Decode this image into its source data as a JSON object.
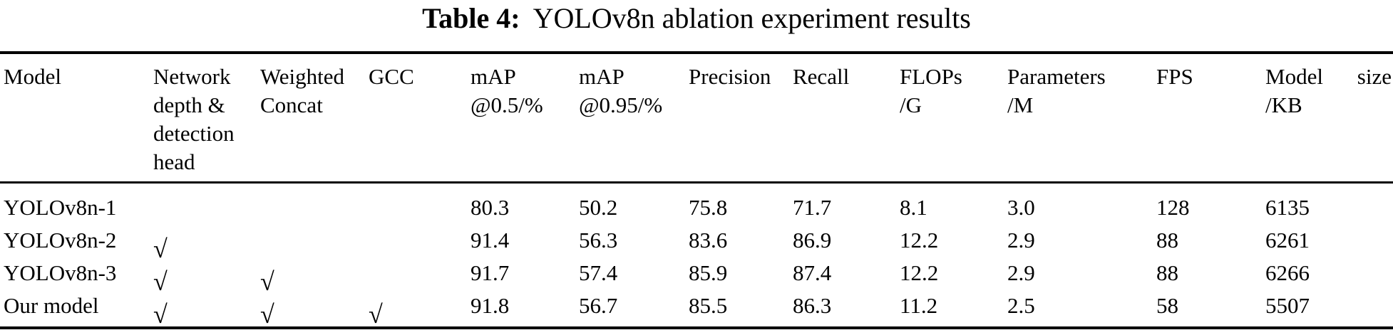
{
  "page": {
    "background": "#ffffff",
    "text_color": "#000000",
    "rule_color": "#000000"
  },
  "title": {
    "prefix": "Table 4:",
    "text": "YOLOv8n ablation experiment results"
  },
  "table": {
    "checkmark": "√",
    "columns": [
      {
        "id": "model",
        "lines": [
          "Model"
        ]
      },
      {
        "id": "network_depth",
        "lines": [
          "Network",
          "depth &",
          "detection",
          "head"
        ]
      },
      {
        "id": "weighted_concat",
        "lines": [
          "Weighted",
          "Concat"
        ]
      },
      {
        "id": "gcc",
        "lines": [
          "GCC"
        ]
      },
      {
        "id": "map50",
        "lines": [
          "mAP",
          "@0.5/%"
        ]
      },
      {
        "id": "map95",
        "lines": [
          "mAP",
          "@0.95/%"
        ]
      },
      {
        "id": "precision",
        "lines": [
          "Precision"
        ]
      },
      {
        "id": "recall",
        "lines": [
          "Recall"
        ]
      },
      {
        "id": "flops",
        "lines": [
          "FLOPs",
          "/G"
        ]
      },
      {
        "id": "parameters",
        "lines": [
          "Parameters",
          "/M"
        ]
      },
      {
        "id": "fps",
        "lines": [
          "FPS"
        ]
      },
      {
        "id": "model_size",
        "lines": [
          "Model size",
          "/KB"
        ],
        "justify_first_line": true
      }
    ],
    "rows": [
      {
        "model": "YOLOv8n-1",
        "network_depth": false,
        "weighted_concat": false,
        "gcc": false,
        "map50": "80.3",
        "map95": "50.2",
        "precision": "75.8",
        "recall": "71.7",
        "flops": "8.1",
        "parameters": "3.0",
        "fps": "128",
        "model_size": "6135"
      },
      {
        "model": "YOLOv8n-2",
        "network_depth": true,
        "weighted_concat": false,
        "gcc": false,
        "map50": "91.4",
        "map95": "56.3",
        "precision": "83.6",
        "recall": "86.9",
        "flops": "12.2",
        "parameters": "2.9",
        "fps": "88",
        "model_size": "6261"
      },
      {
        "model": "YOLOv8n-3",
        "network_depth": true,
        "weighted_concat": true,
        "gcc": false,
        "map50": "91.7",
        "map95": "57.4",
        "precision": "85.9",
        "recall": "87.4",
        "flops": "12.2",
        "parameters": "2.9",
        "fps": "88",
        "model_size": "6266"
      },
      {
        "model": "Our model",
        "network_depth": true,
        "weighted_concat": true,
        "gcc": true,
        "map50": "91.8",
        "map95": "56.7",
        "precision": "85.5",
        "recall": "86.3",
        "flops": "11.2",
        "parameters": "2.5",
        "fps": "58",
        "model_size": "5507"
      }
    ]
  }
}
